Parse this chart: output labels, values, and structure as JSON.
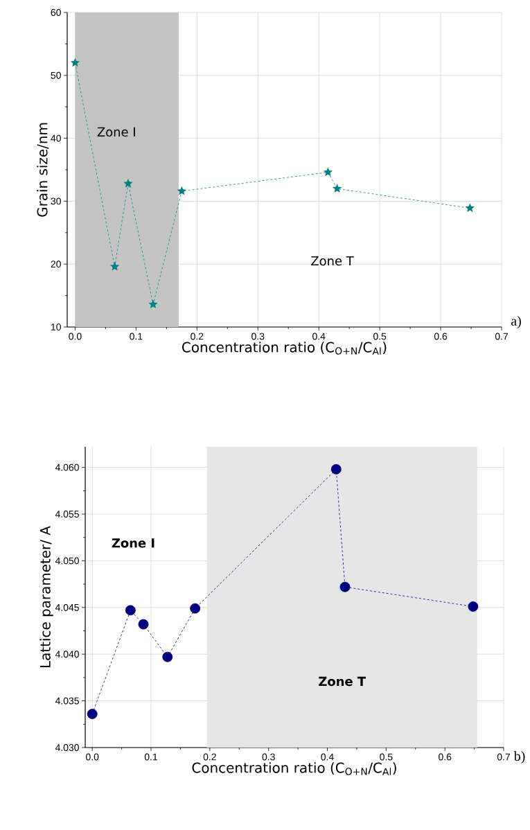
{
  "chart_data": [
    {
      "type": "line",
      "xlabel": "Concentration ratio (C$_{O+N}$/C$_{Al}$)",
      "ylabel": "Grain size/nm",
      "x": [
        0,
        0.065,
        0.087,
        0.128,
        0.175,
        0.415,
        0.43,
        0.648
      ],
      "series": [
        {
          "color": "#008080",
          "values": [
            52,
            19.6,
            32.8,
            13.6,
            31.6,
            34.6,
            32.0,
            28.9
          ]
        }
      ],
      "xlim": [
        -0.013,
        0.7
      ],
      "ylim": [
        10,
        60
      ],
      "xticks": [
        {
          "value": 0,
          "label": "0.0"
        },
        {
          "value": 0.1,
          "label": "0.1"
        },
        {
          "value": 0.2,
          "label": "0.2"
        },
        {
          "value": 0.3,
          "label": "0.3"
        },
        {
          "value": 0.4,
          "label": "0.4"
        },
        {
          "value": 0.5,
          "label": "0.5"
        },
        {
          "value": 0.6,
          "label": "0.6"
        },
        {
          "value": 0.7,
          "label": "0.7"
        }
      ],
      "yticks": [
        10,
        20,
        30,
        40,
        50,
        60
      ],
      "bands": [
        {
          "axis": "x",
          "from": 0,
          "to": 0.17,
          "label": "Zone I",
          "color": "#c4c4c4"
        }
      ],
      "annotations": [
        "Zone T",
        "a)"
      ],
      "grid": true,
      "marker": "star",
      "line_style": "dashed"
    },
    {
      "type": "line",
      "xlabel": "Concentration ratio (C$_{O+N}$/C$_{Al}$)",
      "ylabel": "Lattice parameter/ A",
      "x": [
        0,
        0.065,
        0.087,
        0.128,
        0.175,
        0.415,
        0.43,
        0.648
      ],
      "series": [
        {
          "color": "#000080",
          "values": [
            4.0336,
            4.0447,
            4.0432,
            4.0397,
            4.0449,
            4.0598,
            4.0472,
            4.0451
          ]
        }
      ],
      "xlim": [
        -0.012,
        0.7
      ],
      "ylim": [
        4.03,
        4.0622
      ],
      "xticks": [
        {
          "value": 0,
          "label": "0.0"
        },
        {
          "value": 0.1,
          "label": "0.1"
        },
        {
          "value": 0.2,
          "label": "0.2"
        },
        {
          "value": 0.3,
          "label": "0.3"
        },
        {
          "value": 0.4,
          "label": "0.4"
        },
        {
          "value": 0.5,
          "label": "0.5"
        },
        {
          "value": 0.6,
          "label": "0.6"
        },
        {
          "value": 0.7,
          "label": "0.7"
        }
      ],
      "yticks": [
        {
          "value": 4.03,
          "label": "4.030"
        },
        {
          "value": 4.035,
          "label": "4.035"
        },
        {
          "value": 4.04,
          "label": "4.040"
        },
        {
          "value": 4.045,
          "label": "4.045"
        },
        {
          "value": 4.05,
          "label": "4.050"
        },
        {
          "value": 4.055,
          "label": "4.055"
        },
        {
          "value": 4.06,
          "label": "4.060"
        }
      ],
      "bands": [
        {
          "axis": "x",
          "from": 0.195,
          "to": 0.655,
          "label": "Zone T",
          "color": "#e6e6e6"
        }
      ],
      "annotations": [
        "Zone I",
        "b)"
      ],
      "grid": true,
      "marker": "circle",
      "line_style": "dashed"
    }
  ]
}
